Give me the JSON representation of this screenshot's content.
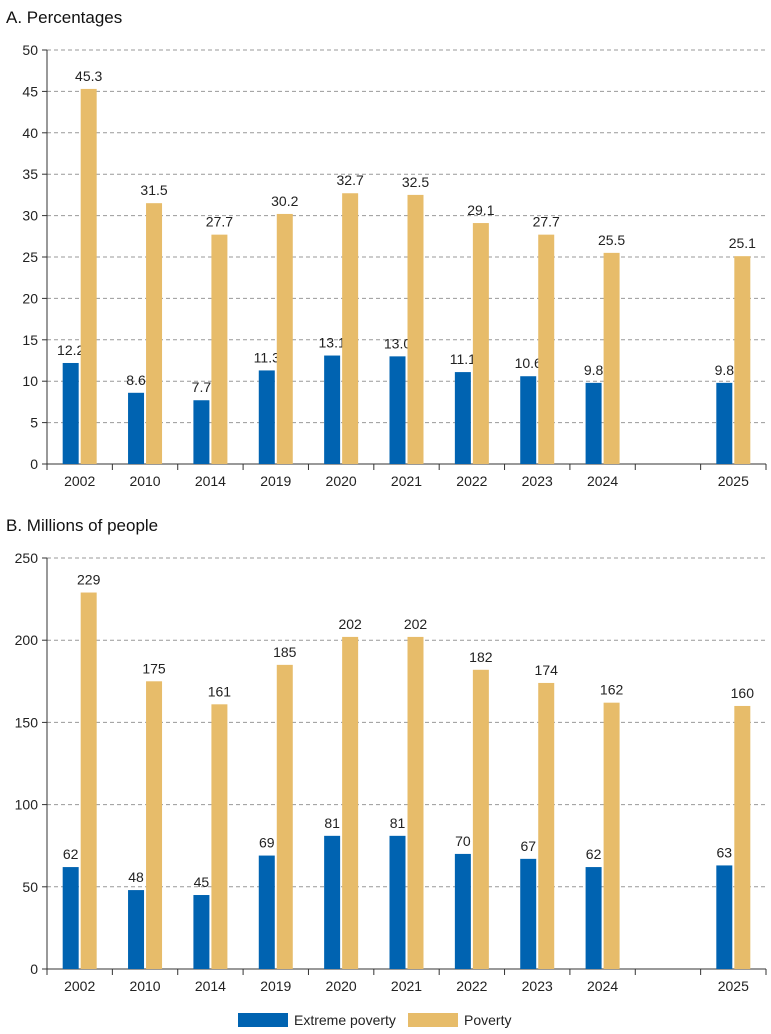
{
  "colors": {
    "extreme": "#0063b1",
    "poverty": "#e7bc6a",
    "grid": "#999999",
    "axis": "#333333"
  },
  "legend": {
    "extreme_label": "Extreme poverty",
    "poverty_label": "Poverty",
    "placement": "bottom-center"
  },
  "chart_data": [
    {
      "type": "bar",
      "title": "A. Percentages",
      "categories": [
        "2002",
        "2010",
        "2014",
        "2019",
        "2020",
        "2021",
        "2022",
        "2023",
        "2024",
        "",
        "2025"
      ],
      "ylim": [
        0,
        50
      ],
      "yticks": [
        0,
        5,
        10,
        15,
        20,
        25,
        30,
        35,
        40,
        45,
        50
      ],
      "grid": true,
      "series": [
        {
          "name": "Extreme poverty",
          "values": [
            12.2,
            8.6,
            7.7,
            11.3,
            13.1,
            13.0,
            11.1,
            10.6,
            9.8,
            null,
            9.8
          ],
          "labels": [
            "12.2",
            "8.6",
            "7.7",
            "11.3",
            "13.1",
            "13.0",
            "11.1",
            "10.6",
            "9.8",
            "",
            "9.8"
          ]
        },
        {
          "name": "Poverty",
          "values": [
            45.3,
            31.5,
            27.7,
            30.2,
            32.7,
            32.5,
            29.1,
            27.7,
            25.5,
            null,
            25.1
          ],
          "labels": [
            "45.3",
            "31.5",
            "27.7",
            "30.2",
            "32.7",
            "32.5",
            "29.1",
            "27.7",
            "25.5",
            "",
            "25.1"
          ]
        }
      ]
    },
    {
      "type": "bar",
      "title": "B. Millions of people",
      "categories": [
        "2002",
        "2010",
        "2014",
        "2019",
        "2020",
        "2021",
        "2022",
        "2023",
        "2024",
        "",
        "2025"
      ],
      "ylim": [
        0,
        250
      ],
      "yticks": [
        0,
        50,
        100,
        150,
        200,
        250
      ],
      "grid": true,
      "series": [
        {
          "name": "Extreme poverty",
          "values": [
            62,
            48,
            45,
            69,
            81,
            81,
            70,
            67,
            62,
            null,
            63
          ],
          "labels": [
            "62",
            "48",
            "45",
            "69",
            "81",
            "81",
            "70",
            "67",
            "62",
            "",
            "63"
          ]
        },
        {
          "name": "Poverty",
          "values": [
            229,
            175,
            161,
            185,
            202,
            202,
            182,
            174,
            162,
            null,
            160
          ],
          "labels": [
            "229",
            "175",
            "161",
            "185",
            "202",
            "202",
            "182",
            "174",
            "162",
            "",
            "160"
          ]
        }
      ]
    }
  ]
}
